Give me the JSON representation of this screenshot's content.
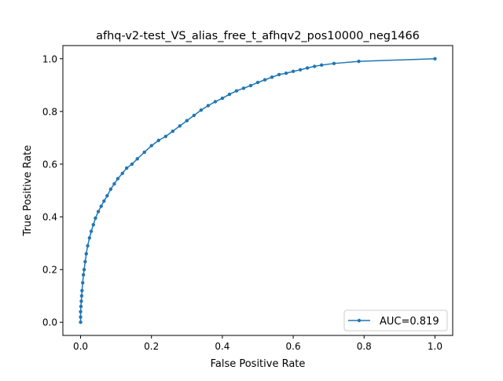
{
  "chart_data": {
    "type": "line",
    "title": "afhq-v2-test_VS_alias_free_t_afhqv2_pos10000_neg1466",
    "xlabel": "False Positive Rate",
    "ylabel": "True Positive Rate",
    "xlim": [
      -0.05,
      1.05
    ],
    "ylim": [
      -0.05,
      1.05
    ],
    "x_ticks": [
      "0.0",
      "0.2",
      "0.4",
      "0.6",
      "0.8",
      "1.0"
    ],
    "y_ticks": [
      "0.0",
      "0.2",
      "0.4",
      "0.6",
      "0.8",
      "1.0"
    ],
    "grid": false,
    "legend_position": "lower-right",
    "series": [
      {
        "name": "AUC=0.819",
        "color": "#1f77b4",
        "x": [
          0.0,
          0.0,
          0.0,
          0.001,
          0.002,
          0.003,
          0.004,
          0.006,
          0.008,
          0.01,
          0.013,
          0.016,
          0.02,
          0.025,
          0.03,
          0.036,
          0.042,
          0.05,
          0.058,
          0.066,
          0.075,
          0.085,
          0.095,
          0.105,
          0.118,
          0.13,
          0.145,
          0.16,
          0.18,
          0.2,
          0.22,
          0.24,
          0.26,
          0.28,
          0.3,
          0.32,
          0.34,
          0.36,
          0.38,
          0.4,
          0.42,
          0.44,
          0.46,
          0.48,
          0.5,
          0.52,
          0.54,
          0.56,
          0.58,
          0.6,
          0.62,
          0.64,
          0.66,
          0.68,
          0.715,
          0.785,
          1.0
        ],
        "y": [
          0.0,
          0.02,
          0.04,
          0.06,
          0.08,
          0.1,
          0.12,
          0.15,
          0.18,
          0.2,
          0.23,
          0.26,
          0.29,
          0.32,
          0.345,
          0.37,
          0.395,
          0.42,
          0.44,
          0.46,
          0.48,
          0.505,
          0.525,
          0.545,
          0.565,
          0.585,
          0.6,
          0.62,
          0.645,
          0.67,
          0.69,
          0.705,
          0.725,
          0.745,
          0.765,
          0.785,
          0.805,
          0.822,
          0.837,
          0.85,
          0.865,
          0.878,
          0.888,
          0.898,
          0.91,
          0.92,
          0.93,
          0.94,
          0.945,
          0.952,
          0.958,
          0.965,
          0.971,
          0.976,
          0.982,
          0.99,
          1.0
        ]
      }
    ]
  }
}
